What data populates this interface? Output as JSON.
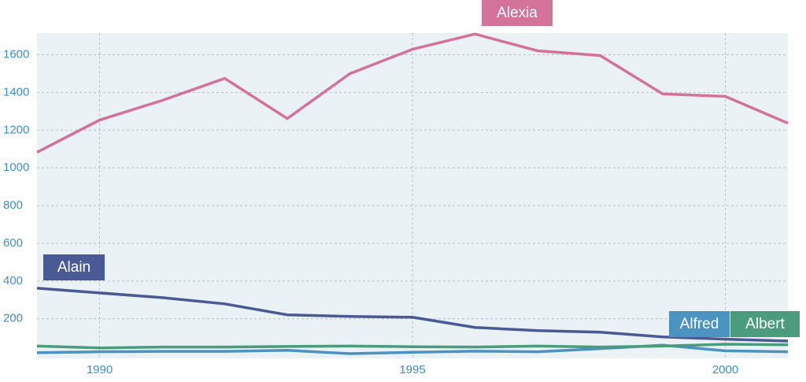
{
  "chart_data": {
    "type": "line",
    "x": [
      1989,
      1990,
      1991,
      1992,
      1993,
      1994,
      1995,
      1996,
      1997,
      1998,
      1999,
      2000,
      2001
    ],
    "xlim": [
      1989,
      2001
    ],
    "xticks": [
      1990,
      1995,
      2000
    ],
    "ylim": [
      -10,
      1715
    ],
    "yticks": [
      200,
      400,
      600,
      800,
      1000,
      1200,
      1400,
      1600
    ],
    "grid": true,
    "series": [
      {
        "name": "Alexia",
        "color": "#d4739a",
        "values": [
          1083,
          1254,
          1358,
          1475,
          1262,
          1500,
          1629,
          1710,
          1621,
          1596,
          1392,
          1379,
          1237
        ]
      },
      {
        "name": "Alain",
        "color": "#4a5a94",
        "values": [
          362,
          337,
          312,
          279,
          221,
          212,
          208,
          154,
          137,
          129,
          104,
          92,
          82
        ]
      },
      {
        "name": "Alfred",
        "color": "#4b93c0",
        "values": [
          20,
          25,
          27,
          27,
          33,
          15,
          22,
          28,
          25,
          42,
          60,
          30,
          25
        ]
      },
      {
        "name": "Albert",
        "color": "#4a9c7c",
        "values": [
          55,
          45,
          50,
          50,
          53,
          55,
          52,
          50,
          55,
          50,
          55,
          65,
          62
        ]
      }
    ]
  }
}
